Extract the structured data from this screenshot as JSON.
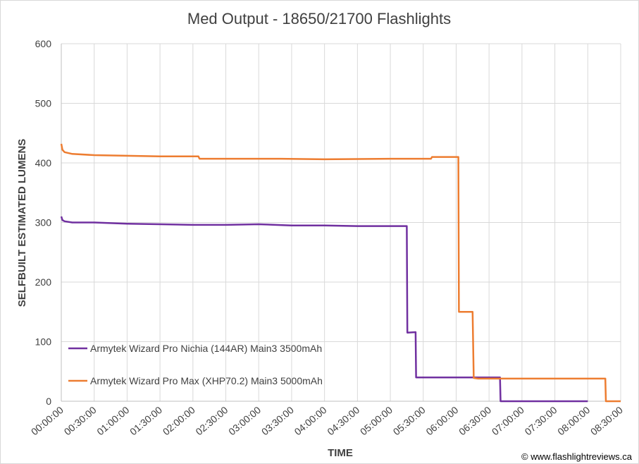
{
  "chart_data": {
    "type": "line",
    "title": "Med Output - 18650/21700 Flashlights",
    "xlabel": "TIME",
    "ylabel": "SELFBUILT ESTIMATED LUMENS",
    "ylim": [
      0,
      600
    ],
    "yticks": [
      0,
      100,
      200,
      300,
      400,
      500,
      600
    ],
    "xlim_minutes": [
      0,
      510
    ],
    "xticks": [
      "00:00:00",
      "00:30:00",
      "01:00:00",
      "01:30:00",
      "02:00:00",
      "02:30:00",
      "03:00:00",
      "03:30:00",
      "04:00:00",
      "04:30:00",
      "05:00:00",
      "05:30:00",
      "06:00:00",
      "06:30:00",
      "07:00:00",
      "07:30:00",
      "08:00:00",
      "08:30:00"
    ],
    "grid": true,
    "legend": "bottom-left",
    "copyright": "© www.flashlightreviews.ca",
    "series": [
      {
        "name": "Armytek Wizard Pro Nichia (144AR) Main3 3500mAh",
        "color": "#7030a0",
        "x_minutes": [
          0,
          1,
          3,
          10,
          30,
          60,
          90,
          120,
          150,
          180,
          210,
          240,
          270,
          300,
          315,
          315.5,
          323,
          323.5,
          400,
          400.5,
          480
        ],
        "values": [
          310,
          304,
          302,
          300,
          300,
          298,
          297,
          296,
          296,
          297,
          295,
          295,
          294,
          294,
          294,
          115,
          116,
          40,
          40,
          0,
          0
        ]
      },
      {
        "name": "Armytek Wizard Pro Max (XHP70.2) Main3 5000mAh",
        "color": "#ed7d31",
        "x_minutes": [
          0,
          1,
          3,
          10,
          30,
          60,
          90,
          120,
          125,
          126,
          150,
          200,
          240,
          300,
          337,
          338,
          362,
          362.5,
          375,
          376,
          380,
          400,
          440,
          496,
          496.5,
          510
        ],
        "values": [
          432,
          422,
          418,
          415,
          413,
          412,
          411,
          411,
          411,
          407,
          407,
          407,
          406,
          407,
          407,
          410,
          410,
          150,
          150,
          39,
          38,
          38,
          38,
          38,
          0,
          0
        ]
      }
    ]
  }
}
